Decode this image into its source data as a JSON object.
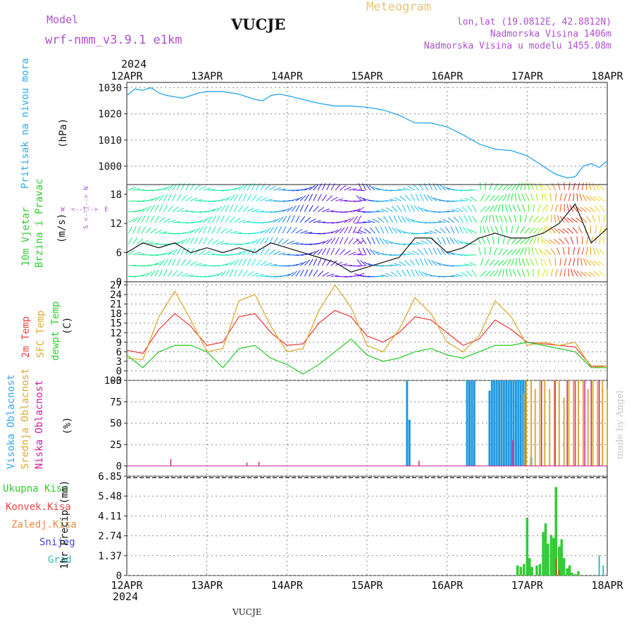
{
  "header": {
    "model_label": "Model",
    "model_name": "wrf-nmm_v3.9.1 e1km",
    "station": "VUCJE",
    "product": "Meteogram",
    "lonlat": "lon,lat (19.0812E, 42.8812N)",
    "elevation": "Nadmorska Visina 1406m",
    "model_elevation": "Nadmorska Visina u modelu 1455.08m",
    "footer_station": "VUCJE",
    "credit": "made by Angel"
  },
  "time_axis": {
    "year": "2024",
    "ticks": [
      "12APR",
      "13APR",
      "14APR",
      "15APR",
      "16APR",
      "17APR",
      "18APR"
    ]
  },
  "colors": {
    "pressure": "#33aaee",
    "temp2m": "#ee4444",
    "sfc_temp": "#ddaa33",
    "dewpt": "#33cc33",
    "cloud_high": "#2299dd",
    "cloud_mid": "#ddaa33",
    "cloud_low": "#cc2299",
    "precip_total": "#33cc33",
    "precip_conv": "#ee4444",
    "precip_snow": "#4444dd",
    "precip_grad": "#33bbbb"
  },
  "panels": {
    "pressure": {
      "labels": [
        "Pritisak na nivou mora",
        "(hPa)"
      ],
      "yticks": [
        "1030",
        "1020",
        "1010",
        "1000"
      ]
    },
    "wind": {
      "labels": [
        "10m Vjetar",
        "Brzina i Pravac",
        "(m/s)"
      ],
      "compass": {
        "n": "N",
        "s": "S",
        "w": "W",
        "e": "E",
        "arrows_h": "<--|-->",
        "arrows_v": "<--|-->"
      },
      "yticks": [
        "18",
        "12",
        "6",
        "0"
      ]
    },
    "temperature": {
      "labels": [
        "2m Temp",
        "SFC Temp",
        "dewpt Temp",
        "(C)"
      ],
      "yticks": [
        "27",
        "24",
        "21",
        "18",
        "15",
        "12",
        "9",
        "6",
        "3",
        "0",
        "-3"
      ]
    },
    "cloud": {
      "labels": [
        "Visoka Oblacnost",
        "Srednja Oblacnost",
        "Niska Oblacnost",
        "(%)"
      ],
      "yticks": [
        "100",
        "75",
        "50",
        "25",
        "0"
      ]
    },
    "precip": {
      "legend": [
        "Ukupna Kisa",
        "Konvek.Kisa",
        "Zaledj.Kisa",
        "Snijeg",
        "Grad"
      ],
      "axis_label": "1hr Precip (mm)",
      "yticks": [
        "6.85",
        "5.48",
        "4.11",
        "2.74",
        "1.37",
        "0"
      ]
    }
  },
  "chart_data": [
    {
      "type": "line",
      "name": "pressure",
      "x_days": [
        0,
        0.1,
        0.2,
        0.3,
        0.4,
        0.5,
        0.6,
        0.7,
        0.8,
        0.9,
        1.0,
        1.2,
        1.4,
        1.6,
        1.7,
        1.8,
        1.9,
        2.0,
        2.2,
        2.4,
        2.6,
        2.8,
        3.0,
        3.2,
        3.4,
        3.6,
        3.8,
        4.0,
        4.2,
        4.4,
        4.6,
        4.8,
        5.0,
        5.2,
        5.35,
        5.5,
        5.6,
        5.7,
        5.8,
        5.9,
        6.0
      ],
      "values": [
        1027,
        1029.5,
        1029,
        1030,
        1028,
        1027,
        1026.5,
        1026,
        1027,
        1028,
        1028.5,
        1028.5,
        1027.5,
        1025.5,
        1025,
        1027,
        1027.5,
        1027,
        1025.5,
        1024,
        1023,
        1023,
        1022.5,
        1021.5,
        1019.5,
        1016.5,
        1016.5,
        1015,
        1012,
        1008.5,
        1006.5,
        1006,
        1004,
        1000,
        997,
        995.5,
        996,
        1000,
        1001,
        999.5,
        1002
      ],
      "ylim": [
        993,
        1032
      ]
    },
    {
      "type": "line",
      "name": "wind_speed",
      "x_days": [
        0,
        0.2,
        0.4,
        0.6,
        0.8,
        1.0,
        1.2,
        1.4,
        1.6,
        1.8,
        2.0,
        2.2,
        2.4,
        2.6,
        2.8,
        3.0,
        3.2,
        3.4,
        3.6,
        3.8,
        4.0,
        4.2,
        4.4,
        4.6,
        4.8,
        5.0,
        5.2,
        5.4,
        5.6,
        5.8,
        6.0
      ],
      "values": [
        6,
        8,
        7,
        8,
        6,
        7,
        6,
        7,
        6,
        8,
        7,
        6,
        5,
        4,
        2,
        3,
        4,
        5,
        9,
        9,
        6,
        7,
        9,
        10,
        9,
        9,
        10,
        12,
        16,
        8,
        11
      ],
      "ylim": [
        0,
        20
      ]
    },
    {
      "type": "line",
      "series": [
        {
          "name": "2m Temp",
          "values": [
            6.5,
            5.5,
            13,
            18,
            14,
            8,
            9,
            17,
            18,
            12,
            8,
            8.5,
            15,
            19,
            17,
            11,
            9,
            12,
            17,
            16,
            12,
            8,
            10,
            16,
            13,
            9,
            8.5,
            8,
            7.5,
            1.5,
            1.5
          ]
        },
        {
          "name": "SFC Temp",
          "values": [
            4,
            3.5,
            17,
            25,
            16,
            6,
            7,
            22,
            24,
            14,
            6,
            7,
            19,
            27,
            20,
            8,
            6,
            13,
            23,
            18,
            9,
            6,
            11,
            22,
            17,
            8,
            9,
            8,
            9,
            1,
            1.5
          ]
        },
        {
          "name": "dewpt Temp",
          "values": [
            5,
            1,
            6,
            8,
            8,
            6,
            1,
            7,
            8,
            4,
            2,
            -1,
            2,
            6,
            10,
            5,
            3,
            4,
            6,
            7,
            5,
            4,
            6,
            8,
            8,
            9,
            8,
            7,
            6,
            1,
            1
          ]
        }
      ],
      "x_days": [
        0,
        0.2,
        0.4,
        0.6,
        0.8,
        1.0,
        1.2,
        1.4,
        1.6,
        1.8,
        2.0,
        2.2,
        2.4,
        2.6,
        2.8,
        3.0,
        3.2,
        3.4,
        3.6,
        3.8,
        4.0,
        4.2,
        4.4,
        4.6,
        4.8,
        5.0,
        5.2,
        5.4,
        5.6,
        5.8,
        6.0
      ],
      "ylim": [
        -3,
        28
      ]
    },
    {
      "type": "bar",
      "name": "cloud",
      "series": [
        {
          "name": "Visoka Oblacnost",
          "x_days": [
            3.5,
            3.53,
            4.25,
            4.28,
            4.31,
            4.34,
            4.53,
            4.56,
            4.59,
            4.62,
            4.65,
            4.68,
            4.71,
            4.74,
            4.77,
            4.8,
            4.83,
            4.86,
            4.89,
            4.92,
            4.95,
            4.98,
            5.05
          ],
          "values": [
            100,
            54,
            100,
            100,
            100,
            100,
            88,
            100,
            100,
            100,
            100,
            100,
            100,
            100,
            100,
            100,
            100,
            100,
            100,
            100,
            100,
            100,
            10
          ]
        },
        {
          "name": "Srednja Oblacnost",
          "x_days": [
            4.96,
            4.99,
            5.05,
            5.1,
            5.16,
            5.22,
            5.28,
            5.34,
            5.4,
            5.46,
            5.52,
            5.58,
            5.64,
            5.7,
            5.76,
            5.82,
            5.88,
            5.94,
            6.0
          ],
          "values": [
            85,
            100,
            100,
            90,
            100,
            100,
            90,
            100,
            100,
            80,
            100,
            100,
            100,
            100,
            90,
            100,
            100,
            100,
            90
          ]
        },
        {
          "name": "Niska Oblacnost",
          "x_days": [
            0.55,
            1.5,
            1.65,
            3.65,
            4.82,
            5.18,
            5.35,
            5.5,
            5.6,
            5.72,
            5.8,
            5.9
          ],
          "values": [
            8,
            4,
            5,
            6,
            30,
            100,
            100,
            100,
            100,
            100,
            100,
            100
          ]
        }
      ],
      "ylim": [
        0,
        100
      ]
    },
    {
      "type": "bar",
      "name": "precip",
      "series": [
        {
          "name": "Ukupna Kisa",
          "x_days": [
            4.88,
            4.92,
            4.96,
            5.0,
            5.03,
            5.06,
            5.12,
            5.16,
            5.2,
            5.23,
            5.26,
            5.3,
            5.33,
            5.36,
            5.4,
            5.43,
            5.46,
            5.5,
            5.53,
            5.56,
            5.6,
            5.64
          ],
          "values": [
            0.7,
            0.6,
            0.8,
            4.0,
            1.2,
            0.6,
            0.7,
            0.8,
            3.0,
            3.6,
            2.2,
            2.8,
            2.6,
            6.1,
            2.0,
            2.5,
            1.2,
            0.5,
            0.7,
            0.2,
            0.1,
            0.3
          ]
        },
        {
          "name": "Konvek.Kisa",
          "x_days": [
            5.36,
            5.4
          ],
          "values": [
            1.2,
            0.4
          ]
        },
        {
          "name": "Grad",
          "x_days": [
            5.9,
            5.95
          ],
          "values": [
            1.4,
            0.7
          ]
        }
      ],
      "ylim": [
        0,
        6.85
      ]
    }
  ]
}
